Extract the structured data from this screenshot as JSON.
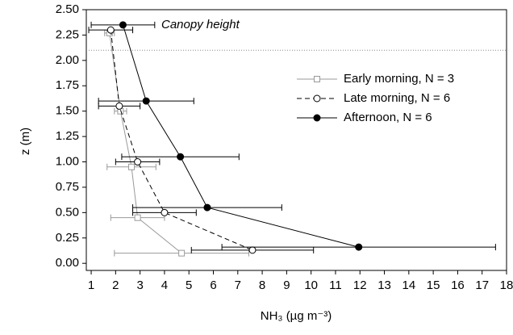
{
  "chart_data": {
    "type": "profile",
    "xlabel": "NH₃ (µg m⁻³)",
    "ylabel": "z (m)",
    "annotation": "Canopy height",
    "canopy_height": 2.1,
    "xlim": [
      0.8,
      18
    ],
    "ylim": [
      -0.07,
      2.5
    ],
    "xticks": [
      1,
      2,
      3,
      4,
      5,
      6,
      7,
      8,
      9,
      10,
      11,
      12,
      13,
      14,
      15,
      16,
      17,
      18
    ],
    "yticks": [
      {
        "value": 0,
        "label": "0.00"
      },
      {
        "value": 0.25,
        "label": "0.25"
      },
      {
        "value": 0.5,
        "label": "0.50"
      },
      {
        "value": 0.75,
        "label": "0.75"
      },
      {
        "value": 1,
        "label": "1.00"
      },
      {
        "value": 1.25,
        "label": "1.25"
      },
      {
        "value": 1.5,
        "label": "1.50"
      },
      {
        "value": 1.75,
        "label": "1.75"
      },
      {
        "value": 2,
        "label": "2.00"
      },
      {
        "value": 2.25,
        "label": "2.25"
      },
      {
        "value": 2.5,
        "label": "2.50"
      }
    ],
    "legend": "right",
    "series": [
      {
        "name": "Early morning, N = 3",
        "color": "#999999",
        "marker": "square",
        "line_style": "solid",
        "x": [
          1.75,
          2.2,
          2.65,
          2.9,
          4.7
        ],
        "values": [
          2.27,
          1.5,
          0.95,
          0.45,
          0.1
        ],
        "xerr": [
          0.2,
          0.25,
          1.0,
          1.1,
          2.75
        ]
      },
      {
        "name": "Late morning, N = 6",
        "color": "#000000",
        "marker": "open-circle",
        "line_style": "dashed",
        "x": [
          1.8,
          2.15,
          2.9,
          4.0,
          7.6
        ],
        "values": [
          2.3,
          1.55,
          1.0,
          0.5,
          0.13
        ],
        "xerr": [
          0.9,
          0.85,
          0.9,
          1.3,
          2.5
        ]
      },
      {
        "name": "Afternoon, N = 6",
        "color": "#000000",
        "marker": "filled-circle",
        "line_style": "solid",
        "x": [
          2.3,
          3.25,
          4.65,
          5.75,
          11.95
        ],
        "values": [
          2.35,
          1.6,
          1.05,
          0.55,
          0.16
        ],
        "xerr": [
          1.3,
          1.95,
          2.4,
          3.05,
          5.6
        ]
      }
    ]
  }
}
